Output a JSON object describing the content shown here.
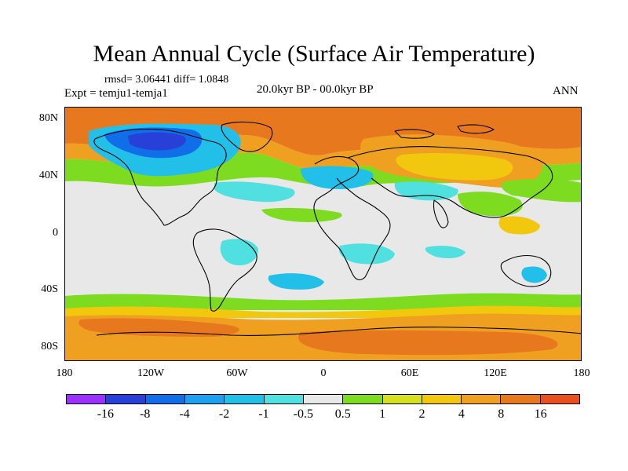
{
  "title": "Mean Annual Cycle (Surface Air Temperature)",
  "stats": "rmsd= 3.06441 diff= 1.0848",
  "experiment": "Expt = temju1-temja1",
  "period": "20.0kyr BP - 00.0kyr BP",
  "season": "ANN",
  "y_axis": [
    "80N",
    "40N",
    "0",
    "40S",
    "80S"
  ],
  "x_axis": [
    "180",
    "120W",
    "60W",
    "0",
    "60E",
    "120E",
    "180"
  ],
  "legend": {
    "colors": [
      "#9b30ff",
      "#2840d8",
      "#0f6ee8",
      "#1ea0f0",
      "#22c0e8",
      "#50e0e0",
      "#e8e8e8",
      "#7ddc1f",
      "#d4e020",
      "#f2c80f",
      "#f0a020",
      "#e8781e",
      "#e8501e"
    ],
    "labels": [
      "-16",
      "-8",
      "-4",
      "-2",
      "-1",
      "-0.5",
      "0.5",
      "1",
      "2",
      "4",
      "8",
      "16"
    ]
  },
  "colors": {
    "neutral": "#e8e8e8",
    "warm_strong": "#e8781e",
    "warm": "#f0a020",
    "warm_mid": "#f2c80f",
    "warm_light": "#7ddc1f",
    "cool_light": "#50e0e0",
    "cool": "#22c0e8",
    "cool_mid": "#1ea0f0",
    "cool_strong": "#0f6ee8",
    "cold": "#2840d8",
    "coast": "#000000"
  }
}
